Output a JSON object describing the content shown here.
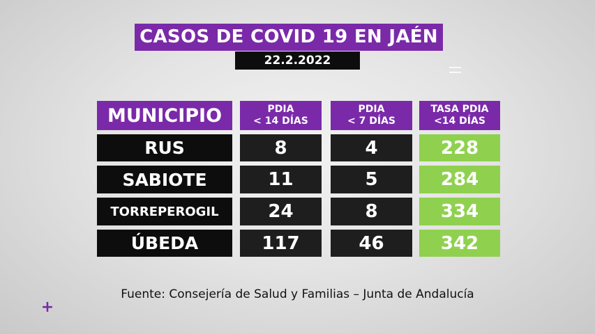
{
  "title": "CASOS DE COVID 19 EN JAÉN",
  "date": "22.2.2022",
  "table": {
    "headers": {
      "municipio": "MUNICIPIO",
      "pdia14_line1": "PDIA",
      "pdia14_line2": "< 14 DÍAS",
      "pdia7_line1": "PDIA",
      "pdia7_line2": "< 7 DÍAS",
      "tasa_line1": "TASA PDIA",
      "tasa_line2": "<14 DÍAS"
    },
    "rows": [
      {
        "municipio": "RUS",
        "pdia14": "8",
        "pdia7": "4",
        "tasa": "228"
      },
      {
        "municipio": "SABIOTE",
        "pdia14": "11",
        "pdia7": "5",
        "tasa": "284"
      },
      {
        "municipio": "TORREPEROGIL",
        "pdia14": "24",
        "pdia7": "8",
        "tasa": "334"
      },
      {
        "municipio": "ÚBEDA",
        "pdia14": "117",
        "pdia7": "46",
        "tasa": "342"
      }
    ]
  },
  "source": "Fuente: Consejería de Salud y Familias – Junta de Andalucía",
  "colors": {
    "accent": "#7a2aa8",
    "rate_bg": "#8fd14f",
    "dark": "#0d0d0d"
  },
  "icons": {
    "corner": "plus-icon"
  }
}
